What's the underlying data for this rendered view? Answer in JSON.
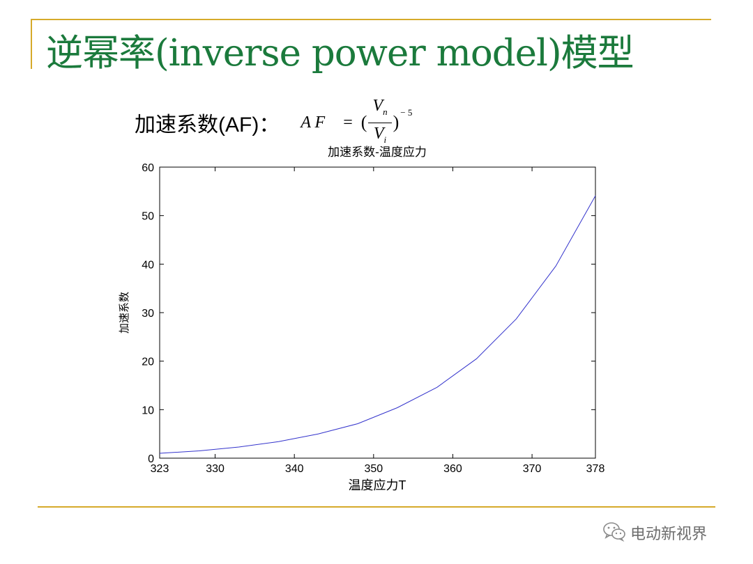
{
  "slide": {
    "title": "逆幂率(inverse power model)模型",
    "af_label": "加速系数(AF)：",
    "formula": {
      "lhs": "A F",
      "equals": "=",
      "open_paren": "(",
      "numerator_var": "V",
      "numerator_sub": "n",
      "denominator_var": "V",
      "denominator_sub": "i",
      "close_paren": ")",
      "exponent": "− 5"
    }
  },
  "chart_data": {
    "type": "line",
    "title": "加速系数-温度应力",
    "xlabel": "温度应力T",
    "ylabel": "加速系数",
    "xlim": [
      323,
      378
    ],
    "ylim": [
      0,
      60
    ],
    "xticks": [
      323,
      330,
      340,
      350,
      360,
      370,
      378
    ],
    "yticks": [
      0,
      10,
      20,
      30,
      40,
      50,
      60
    ],
    "grid": false,
    "series": [
      {
        "color": "#3333cc",
        "x": [
          323,
          328,
          333,
          338,
          343,
          348,
          353,
          358,
          363,
          368,
          373,
          378
        ],
        "y": [
          1.0,
          1.5,
          2.3,
          3.4,
          5.0,
          7.1,
          10.4,
          14.6,
          20.5,
          28.7,
          39.6,
          54.1
        ]
      }
    ]
  },
  "watermark": {
    "icon": "wechat-icon",
    "text": "电动新视界"
  },
  "colors": {
    "title": "#1b7a3c",
    "accent_rule": "#d6aa2a"
  }
}
